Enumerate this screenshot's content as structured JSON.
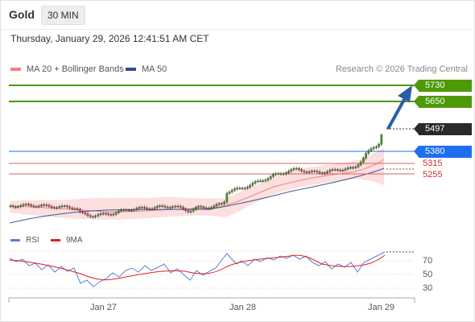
{
  "header": {
    "symbol": "Gold",
    "timeframe": "30 MIN"
  },
  "datetime": "Thursday, January 29, 2026 12:41:51 AM CET",
  "legend": {
    "ma20_label": "MA 20 + Bollinger Bands",
    "ma20_color": "#f08080",
    "ma50_label": "MA 50",
    "ma50_color": "#2f4f8f",
    "copyright": "Research © 2026 Trading Central"
  },
  "rsi_legend": {
    "rsi_label": "RSI",
    "rsi_color": "#5b7fd6",
    "ma_label": "9MA",
    "ma_color": "#e02020"
  },
  "levels": {
    "target2": "5730",
    "target1": "5650",
    "last": "5497",
    "pivot": "5380",
    "support1": "5315",
    "support2": "5255"
  },
  "rsi_levels": [
    "70",
    "50",
    "30"
  ],
  "x_axis": [
    "Jan 27",
    "Jan 28",
    "Jan 29"
  ],
  "colors": {
    "target": "#4e9a06",
    "pivot": "#1e6ff0",
    "last": "#2a2a2a",
    "support": "#e06060",
    "arrow": "#2b5ea8"
  }
}
